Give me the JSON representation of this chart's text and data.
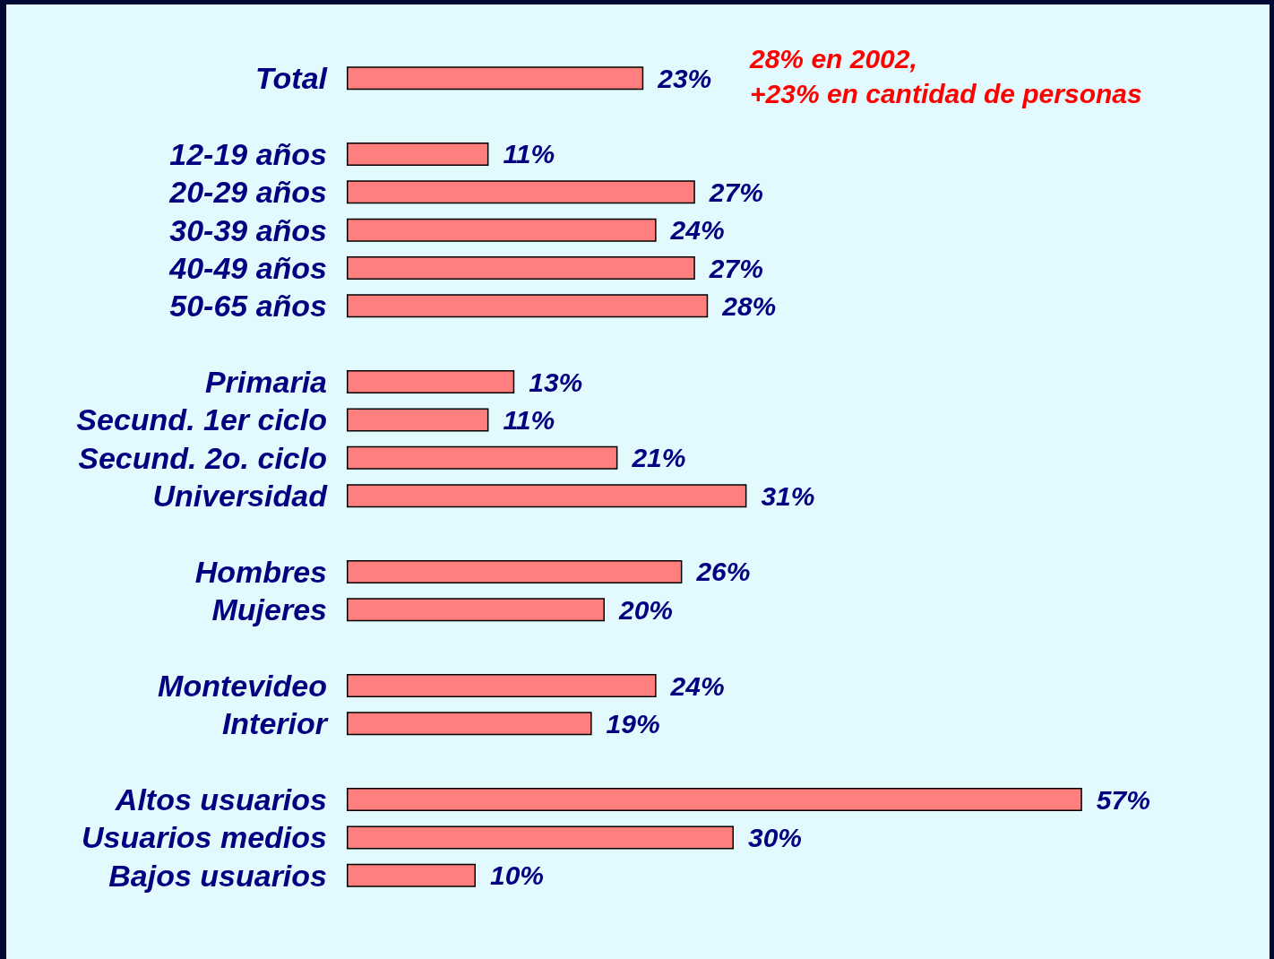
{
  "chart_data": {
    "type": "bar",
    "orientation": "horizontal",
    "categories": [
      "Total",
      null,
      "12-19 años",
      "20-29 años",
      "30-39 años",
      "40-49 años",
      "50-65 años",
      null,
      "Primaria",
      "Secund. 1er ciclo",
      "Secund. 2o. ciclo",
      "Universidad",
      null,
      "Hombres",
      "Mujeres",
      null,
      "Montevideo",
      "Interior",
      null,
      "Altos usuarios",
      "Usuarios medios",
      "Bajos usuarios"
    ],
    "values": [
      23,
      null,
      11,
      27,
      24,
      27,
      28,
      null,
      13,
      11,
      21,
      31,
      null,
      26,
      20,
      null,
      24,
      19,
      null,
      57,
      30,
      10
    ],
    "value_labels": [
      "23%",
      null,
      "11%",
      "27%",
      "24%",
      "27%",
      "28%",
      null,
      "13%",
      "11%",
      "21%",
      "31%",
      null,
      "26%",
      "20%",
      null,
      "24%",
      "19%",
      null,
      "57%",
      "30%",
      "10%"
    ],
    "color": "#ff7f7f",
    "annotations": [
      "28% en 2002,",
      "+23% en cantidad de personas"
    ]
  }
}
